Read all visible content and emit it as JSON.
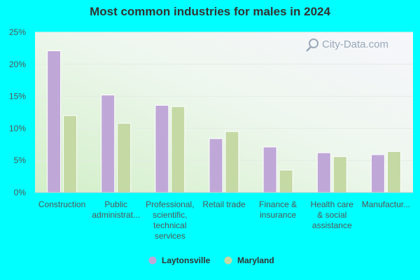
{
  "title": "Most common industries for males in 2024",
  "watermark": "City-Data.com",
  "colors": {
    "page_background": "#00ffff",
    "series_1": "#bfa8d8",
    "series_2": "#c4d9a4",
    "axis_text": "#555555"
  },
  "chart_data": {
    "type": "bar",
    "title": "Most common industries for males in 2024",
    "xlabel": "",
    "ylabel": "",
    "ylim": [
      0,
      25
    ],
    "yticks": [
      "0%",
      "5%",
      "10%",
      "15%",
      "20%",
      "25%"
    ],
    "categories": [
      [
        "Construction"
      ],
      [
        "Public",
        "administrat..."
      ],
      [
        "Professional,",
        "scientific,",
        "technical",
        "services"
      ],
      [
        "Retail trade"
      ],
      [
        "Finance &",
        "insurance"
      ],
      [
        "Health care",
        "& social",
        "assistance"
      ],
      [
        "Manufactur..."
      ]
    ],
    "series": [
      {
        "name": "Laytonsville",
        "values": [
          22.1,
          15.2,
          13.6,
          8.4,
          7.1,
          6.2,
          5.9
        ]
      },
      {
        "name": "Maryland",
        "values": [
          12.0,
          10.8,
          13.4,
          9.5,
          3.5,
          5.6,
          6.4
        ]
      }
    ],
    "grid": true,
    "legend_position": "bottom"
  }
}
